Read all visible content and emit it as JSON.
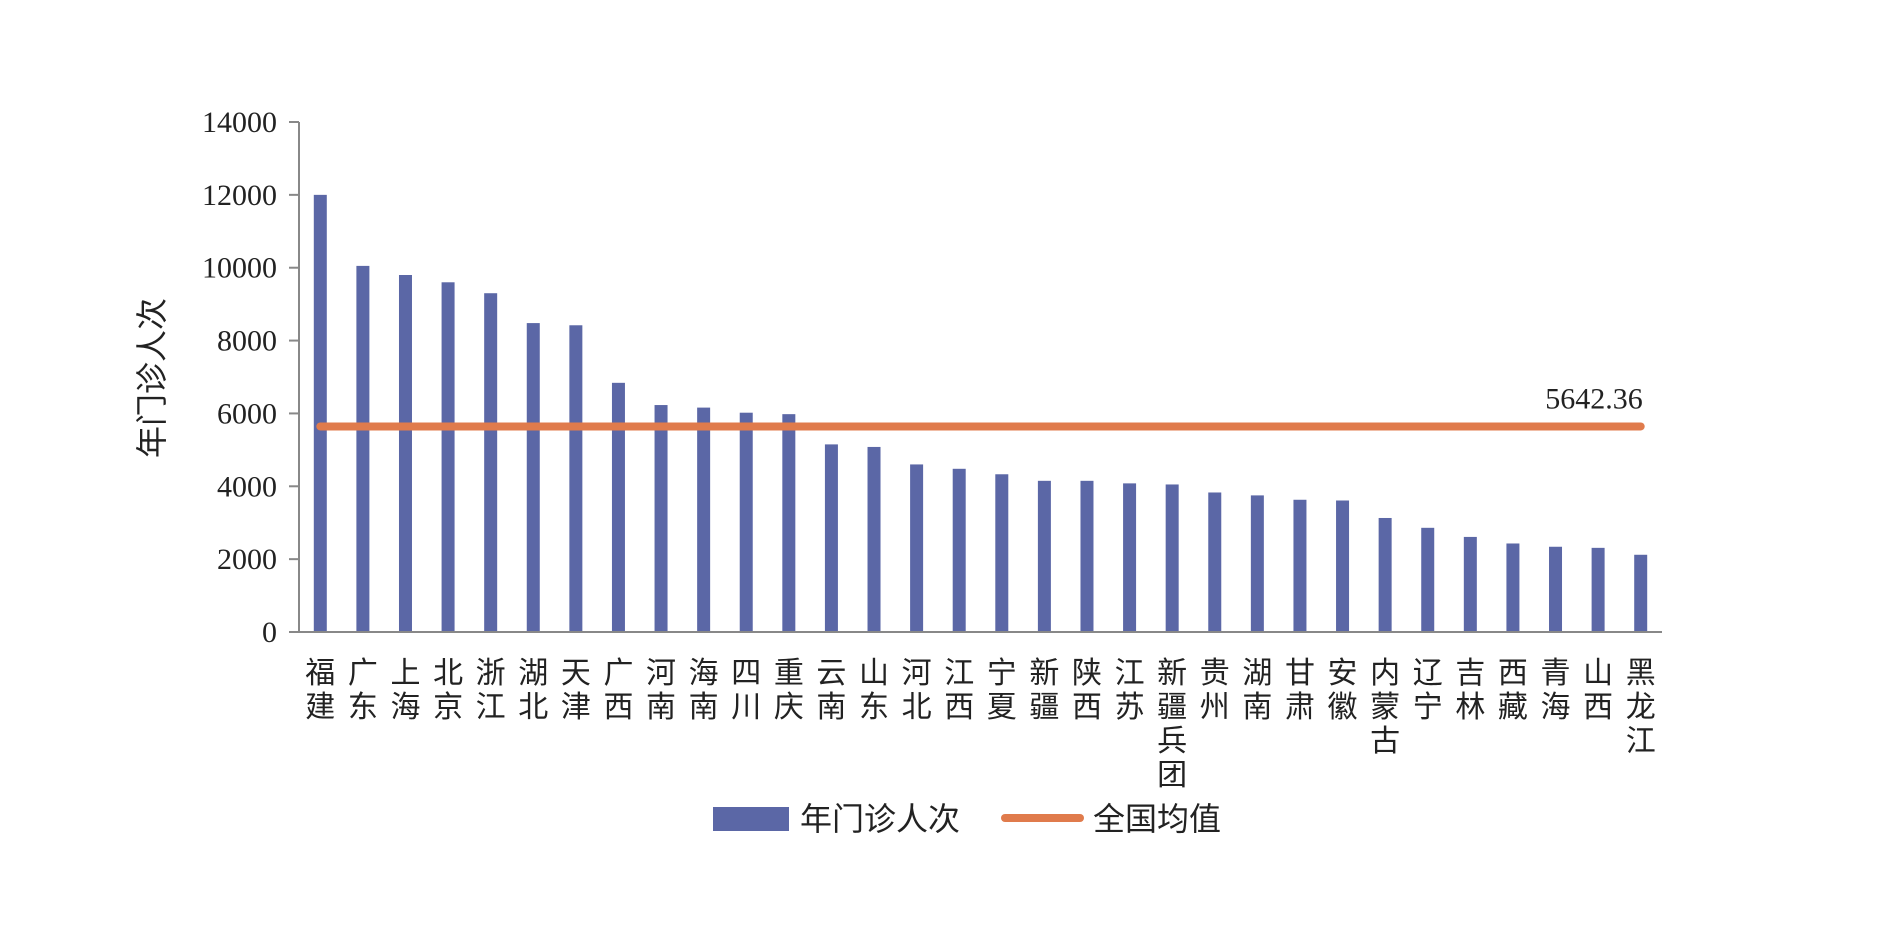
{
  "chart_data": {
    "type": "bar",
    "ylabel": "年门诊人次",
    "ylim": [
      0,
      14000
    ],
    "yticks": [
      "0",
      "2000",
      "4000",
      "6000",
      "8000",
      "10000",
      "12000",
      "14000"
    ],
    "categories": [
      "福建",
      "广东",
      "上海",
      "北京",
      "浙江",
      "湖北",
      "天津",
      "广西",
      "河南",
      "海南",
      "四川",
      "重庆",
      "云南",
      "山东",
      "河北",
      "江西",
      "宁夏",
      "新疆",
      "陕西",
      "江苏",
      "新疆兵团",
      "贵州",
      "湖南",
      "甘肃",
      "安徽",
      "内蒙古",
      "辽宁",
      "吉林",
      "西藏",
      "青海",
      "山西",
      "黑龙江"
    ],
    "series": [
      {
        "name": "年门诊人次",
        "type": "bar",
        "color": "#5b67a6",
        "values": [
          12000,
          10050,
          9800,
          9600,
          9300,
          8480,
          8420,
          6840,
          6230,
          6160,
          6020,
          5980,
          5150,
          5080,
          4600,
          4480,
          4330,
          4150,
          4150,
          4080,
          4050,
          3830,
          3750,
          3630,
          3610,
          3130,
          2860,
          2610,
          2430,
          2340,
          2310,
          2120
        ]
      },
      {
        "name": "全国均值",
        "type": "line",
        "color": "#e07b4c",
        "value": 5642.36,
        "label": "5642.36"
      }
    ],
    "legend": "bottom",
    "grid": false
  }
}
